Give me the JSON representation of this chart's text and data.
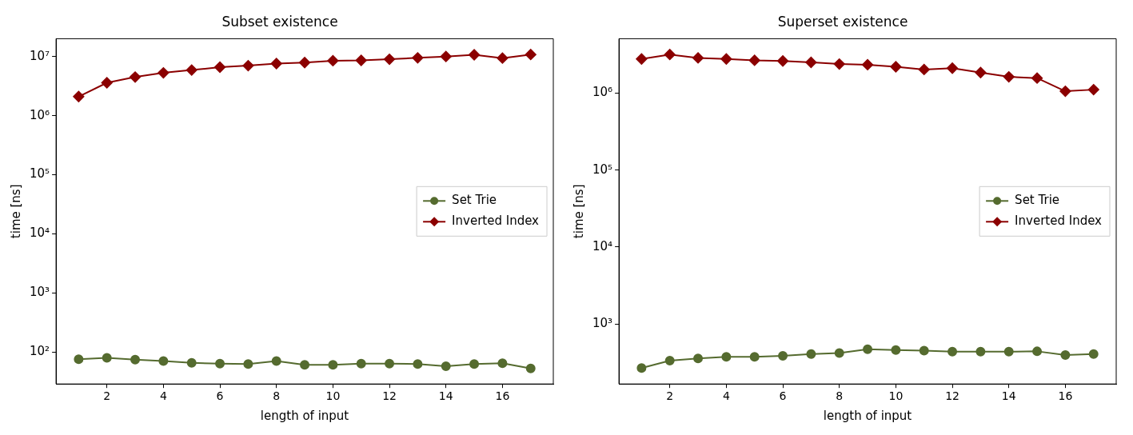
{
  "chart_data": [
    {
      "type": "line",
      "title": "Subset existence",
      "xlabel": "length of input",
      "ylabel": "time [ns]",
      "log": "y",
      "legend": "center right",
      "grid": false,
      "x": [
        1,
        2,
        3,
        4,
        5,
        6,
        7,
        8,
        9,
        10,
        11,
        12,
        13,
        14,
        15,
        16,
        17
      ],
      "xlim": [
        0.2,
        17.8
      ],
      "xticks": [
        2,
        4,
        6,
        8,
        10,
        12,
        14,
        16
      ],
      "ylim": [
        29,
        20000000
      ],
      "yticks": [
        {
          "value": 100,
          "label": "10²"
        },
        {
          "value": 1000,
          "label": "10³"
        },
        {
          "value": 10000,
          "label": "10⁴"
        },
        {
          "value": 100000,
          "label": "10⁵"
        },
        {
          "value": 1000000,
          "label": "10⁶"
        },
        {
          "value": 10000000,
          "label": "10⁷"
        }
      ],
      "series": [
        {
          "name": "Set Trie",
          "color": "#556b2f",
          "marker": "circle",
          "values": [
            76,
            80,
            75,
            71,
            66,
            64,
            63,
            71,
            61,
            61,
            64,
            64,
            63,
            58,
            63,
            65,
            53
          ]
        },
        {
          "name": "Inverted Index",
          "color": "#8b0000",
          "marker": "diamond",
          "values": [
            2100000,
            3600000,
            4500000,
            5300000,
            5900000,
            6600000,
            7000000,
            7600000,
            7900000,
            8500000,
            8600000,
            9000000,
            9500000,
            10000000,
            10700000,
            9400000,
            10800000
          ]
        }
      ]
    },
    {
      "type": "line",
      "title": "Superset existence",
      "xlabel": "length of input",
      "ylabel": "time [ns]",
      "log": "y",
      "legend": "center right",
      "grid": false,
      "x": [
        1,
        2,
        3,
        4,
        5,
        6,
        7,
        8,
        9,
        10,
        11,
        12,
        13,
        14,
        15,
        16,
        17
      ],
      "xlim": [
        0.2,
        17.8
      ],
      "xticks": [
        2,
        4,
        6,
        8,
        10,
        12,
        14,
        16
      ],
      "ylim": [
        166,
        5100000
      ],
      "yticks": [
        {
          "value": 1000,
          "label": "10³"
        },
        {
          "value": 10000,
          "label": "10⁴"
        },
        {
          "value": 100000,
          "label": "10⁵"
        },
        {
          "value": 1000000,
          "label": "10⁶"
        }
      ],
      "series": [
        {
          "name": "Set Trie",
          "color": "#556b2f",
          "marker": "circle",
          "values": [
            267,
            334,
            356,
            374,
            374,
            386,
            406,
            419,
            469,
            459,
            450,
            436,
            436,
            436,
            441,
            395,
            406
          ]
        },
        {
          "name": "Inverted Index",
          "color": "#8b0000",
          "marker": "diamond",
          "values": [
            2780000,
            3180000,
            2870000,
            2780000,
            2670000,
            2620000,
            2510000,
            2390000,
            2340000,
            2200000,
            2030000,
            2110000,
            1850000,
            1630000,
            1570000,
            1060000,
            1110000
          ]
        }
      ]
    }
  ]
}
